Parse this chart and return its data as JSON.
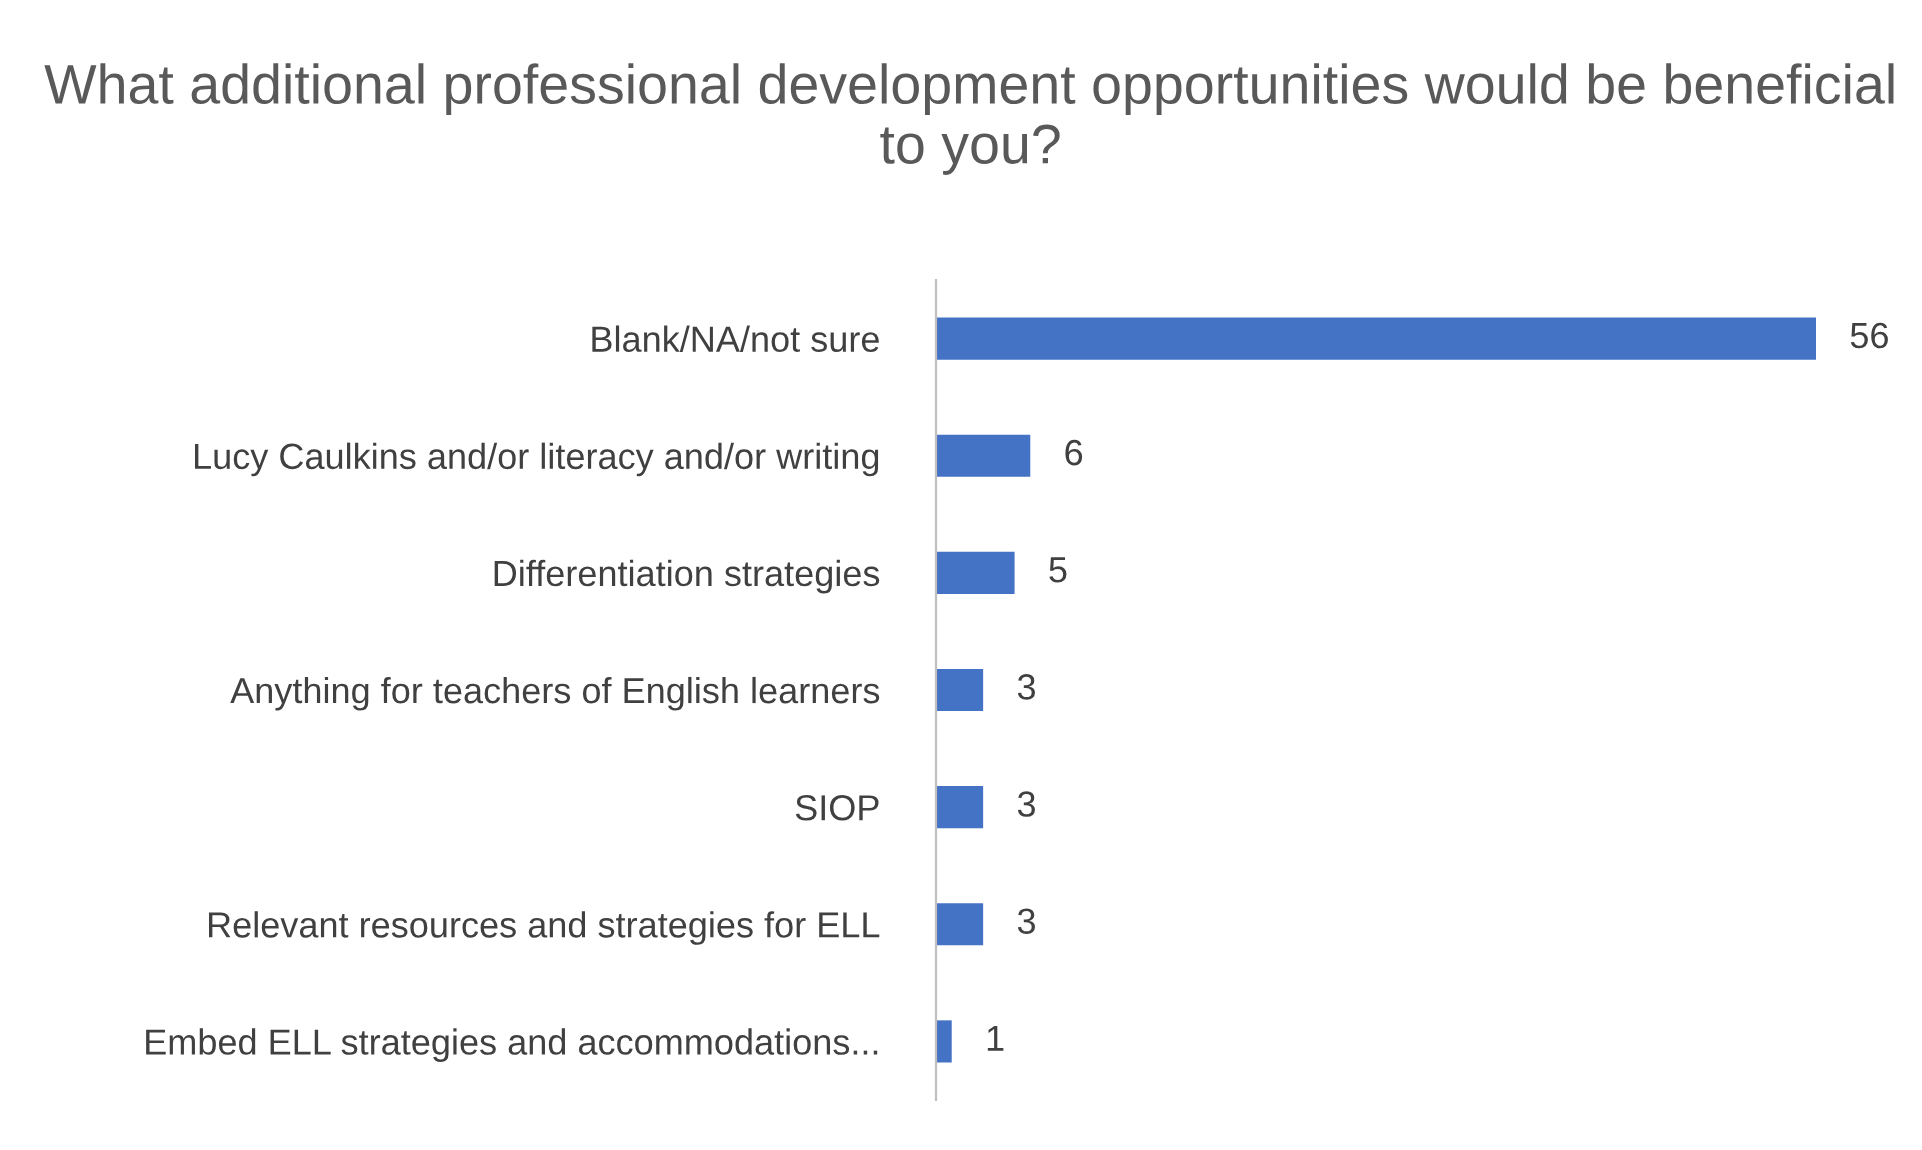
{
  "chart_data": {
    "type": "bar",
    "orientation": "horizontal",
    "title": "What additional professional development opportunities would be beneficial to you?",
    "categories": [
      "Blank/NA/not sure",
      "Lucy Caulkins and/or literacy and/or writing",
      "Differentiation strategies",
      "Anything for teachers of English learners",
      "SIOP",
      "Relevant resources and strategies for ELL",
      "Embed ELL strategies and accommodations..."
    ],
    "values": [
      56,
      6,
      5,
      3,
      3,
      3,
      1
    ],
    "color": "#4472c4",
    "data_labels": true,
    "grid": false,
    "legend": false
  }
}
